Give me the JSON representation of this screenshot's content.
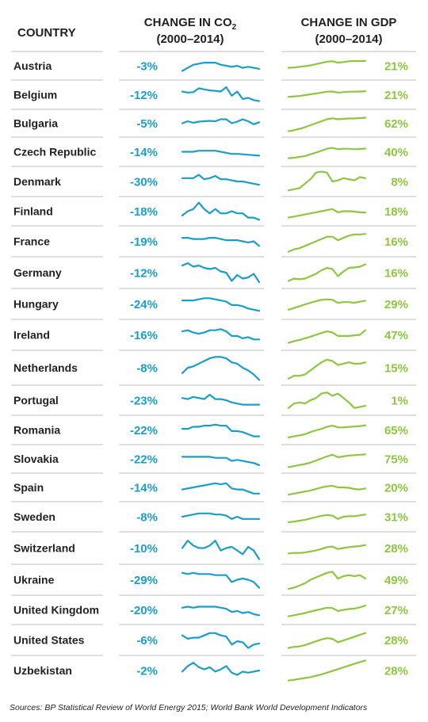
{
  "chart_data": {
    "type": "table",
    "headers": {
      "country": "COUNTRY",
      "co2_line1": "CHANGE IN CO",
      "co2_subscript": "2",
      "co2_line2": "(2000–2014)",
      "gdp_line1": "CHANGE IN GDP",
      "gdp_line2": "(2000–2014)"
    },
    "colors": {
      "co2": "#1a9dc9",
      "gdp": "#8dc63f",
      "text": "#231f20",
      "rule": "#bfbfbf"
    },
    "rows": [
      {
        "country": "Austria",
        "co2": "-3%",
        "gdp": "21%",
        "co2_trend": [
          0.75,
          0.6,
          0.45,
          0.4,
          0.35,
          0.35,
          0.35,
          0.45,
          0.5,
          0.55,
          0.5,
          0.6,
          0.55,
          0.6,
          0.65
        ],
        "gdp_trend": [
          0.6,
          0.58,
          0.55,
          0.52,
          0.48,
          0.42,
          0.36,
          0.3,
          0.28,
          0.35,
          0.32,
          0.28,
          0.27,
          0.27,
          0.26
        ]
      },
      {
        "country": "Belgium",
        "co2": "-12%",
        "gdp": "21%",
        "co2_trend": [
          0.35,
          0.4,
          0.38,
          0.2,
          0.25,
          0.3,
          0.32,
          0.35,
          0.15,
          0.55,
          0.35,
          0.7,
          0.65,
          0.75,
          0.8
        ],
        "gdp_trend": [
          0.6,
          0.58,
          0.56,
          0.52,
          0.48,
          0.44,
          0.4,
          0.36,
          0.35,
          0.4,
          0.38,
          0.36,
          0.36,
          0.35,
          0.34
        ]
      },
      {
        "country": "Bulgaria",
        "co2": "-5%",
        "gdp": "62%",
        "co2_trend": [
          0.5,
          0.4,
          0.48,
          0.42,
          0.4,
          0.38,
          0.4,
          0.3,
          0.3,
          0.5,
          0.42,
          0.3,
          0.4,
          0.55,
          0.45
        ],
        "gdp_trend": [
          0.9,
          0.85,
          0.78,
          0.7,
          0.6,
          0.5,
          0.4,
          0.3,
          0.25,
          0.3,
          0.28,
          0.26,
          0.26,
          0.24,
          0.22
        ]
      },
      {
        "country": "Czech Republic",
        "co2": "-14%",
        "gdp": "40%",
        "co2_trend": [
          0.5,
          0.5,
          0.5,
          0.45,
          0.45,
          0.45,
          0.45,
          0.5,
          0.55,
          0.6,
          0.6,
          0.62,
          0.64,
          0.66,
          0.68
        ],
        "gdp_trend": [
          0.8,
          0.78,
          0.74,
          0.7,
          0.62,
          0.54,
          0.45,
          0.36,
          0.32,
          0.38,
          0.36,
          0.36,
          0.38,
          0.37,
          0.35
        ]
      },
      {
        "country": "Denmark",
        "co2": "-30%",
        "gdp": "8%",
        "co2_trend": [
          0.35,
          0.35,
          0.35,
          0.2,
          0.4,
          0.35,
          0.25,
          0.4,
          0.4,
          0.45,
          0.5,
          0.5,
          0.55,
          0.6,
          0.65
        ],
        "gdp_trend": [
          0.9,
          0.85,
          0.8,
          0.6,
          0.4,
          0.1,
          0.05,
          0.1,
          0.5,
          0.45,
          0.35,
          0.4,
          0.45,
          0.3,
          0.35
        ]
      },
      {
        "country": "Finland",
        "co2": "-18%",
        "gdp": "18%",
        "co2_trend": [
          0.7,
          0.5,
          0.4,
          0.1,
          0.4,
          0.6,
          0.4,
          0.6,
          0.6,
          0.5,
          0.6,
          0.6,
          0.8,
          0.8,
          0.9
        ],
        "gdp_trend": [
          0.8,
          0.75,
          0.7,
          0.65,
          0.6,
          0.55,
          0.5,
          0.45,
          0.4,
          0.55,
          0.5,
          0.5,
          0.52,
          0.55,
          0.56
        ]
      },
      {
        "country": "France",
        "co2": "-19%",
        "gdp": "16%",
        "co2_trend": [
          0.35,
          0.35,
          0.4,
          0.4,
          0.4,
          0.35,
          0.35,
          0.4,
          0.45,
          0.45,
          0.45,
          0.5,
          0.55,
          0.5,
          0.7
        ],
        "gdp_trend": [
          0.95,
          0.85,
          0.8,
          0.7,
          0.6,
          0.5,
          0.4,
          0.3,
          0.3,
          0.45,
          0.35,
          0.25,
          0.2,
          0.2,
          0.18
        ]
      },
      {
        "country": "Germany",
        "co2": "-12%",
        "gdp": "16%",
        "co2_trend": [
          0.2,
          0.1,
          0.25,
          0.2,
          0.3,
          0.35,
          0.3,
          0.45,
          0.5,
          0.85,
          0.6,
          0.75,
          0.7,
          0.55,
          0.9
        ],
        "gdp_trend": [
          0.85,
          0.75,
          0.78,
          0.75,
          0.65,
          0.55,
          0.4,
          0.3,
          0.35,
          0.65,
          0.45,
          0.3,
          0.28,
          0.25,
          0.15
        ]
      },
      {
        "country": "Hungary",
        "co2": "-24%",
        "gdp": "29%",
        "co2_trend": [
          0.35,
          0.35,
          0.35,
          0.3,
          0.25,
          0.25,
          0.3,
          0.35,
          0.4,
          0.55,
          0.55,
          0.6,
          0.7,
          0.75,
          0.8
        ],
        "gdp_trend": [
          0.75,
          0.68,
          0.6,
          0.52,
          0.45,
          0.38,
          0.32,
          0.3,
          0.32,
          0.45,
          0.42,
          0.42,
          0.45,
          0.4,
          0.36
        ]
      },
      {
        "country": "Ireland",
        "co2": "-16%",
        "gdp": "47%",
        "co2_trend": [
          0.35,
          0.3,
          0.4,
          0.45,
          0.4,
          0.3,
          0.3,
          0.25,
          0.35,
          0.55,
          0.55,
          0.65,
          0.6,
          0.7,
          0.7
        ],
        "gdp_trend": [
          0.85,
          0.78,
          0.72,
          0.65,
          0.58,
          0.5,
          0.42,
          0.35,
          0.4,
          0.55,
          0.55,
          0.55,
          0.52,
          0.5,
          0.3
        ]
      },
      {
        "country": "Netherlands",
        "co2": "-8%",
        "gdp": "15%",
        "co2_trend": [
          0.7,
          0.5,
          0.45,
          0.35,
          0.25,
          0.15,
          0.1,
          0.1,
          0.15,
          0.3,
          0.35,
          0.5,
          0.6,
          0.75,
          0.95
        ],
        "gdp_trend": [
          0.9,
          0.8,
          0.8,
          0.75,
          0.6,
          0.45,
          0.3,
          0.2,
          0.25,
          0.4,
          0.35,
          0.3,
          0.35,
          0.35,
          0.3
        ]
      },
      {
        "country": "Portugal",
        "co2": "-23%",
        "gdp": "1%",
        "co2_trend": [
          0.4,
          0.45,
          0.35,
          0.4,
          0.45,
          0.25,
          0.45,
          0.45,
          0.5,
          0.6,
          0.65,
          0.7,
          0.7,
          0.7,
          0.7
        ],
        "gdp_trend": [
          0.85,
          0.65,
          0.6,
          0.65,
          0.5,
          0.4,
          0.2,
          0.15,
          0.3,
          0.2,
          0.4,
          0.6,
          0.85,
          0.8,
          0.75
        ]
      },
      {
        "country": "Romania",
        "co2": "-22%",
        "gdp": "65%",
        "co2_trend": [
          0.45,
          0.45,
          0.35,
          0.35,
          0.3,
          0.3,
          0.25,
          0.3,
          0.3,
          0.55,
          0.55,
          0.6,
          0.7,
          0.8,
          0.8
        ],
        "gdp_trend": [
          0.85,
          0.8,
          0.75,
          0.7,
          0.6,
          0.52,
          0.45,
          0.35,
          0.3,
          0.38,
          0.38,
          0.36,
          0.34,
          0.32,
          0.28
        ]
      },
      {
        "country": "Slovakia",
        "co2": "-22%",
        "gdp": "75%",
        "co2_trend": [
          0.4,
          0.4,
          0.4,
          0.4,
          0.4,
          0.4,
          0.45,
          0.45,
          0.45,
          0.6,
          0.55,
          0.6,
          0.65,
          0.7,
          0.8
        ],
        "gdp_trend": [
          0.9,
          0.85,
          0.8,
          0.75,
          0.68,
          0.58,
          0.48,
          0.38,
          0.3,
          0.42,
          0.38,
          0.34,
          0.32,
          0.3,
          0.28
        ]
      },
      {
        "country": "Spain",
        "co2": "-14%",
        "gdp": "20%",
        "co2_trend": [
          0.6,
          0.55,
          0.5,
          0.45,
          0.4,
          0.35,
          0.3,
          0.35,
          0.3,
          0.55,
          0.6,
          0.6,
          0.7,
          0.8,
          0.8
        ],
        "gdp_trend": [
          0.85,
          0.8,
          0.75,
          0.7,
          0.65,
          0.58,
          0.5,
          0.45,
          0.42,
          0.5,
          0.5,
          0.52,
          0.58,
          0.6,
          0.55
        ]
      },
      {
        "country": "Sweden",
        "co2": "-8%",
        "gdp": "31%",
        "co2_trend": [
          0.5,
          0.45,
          0.4,
          0.35,
          0.35,
          0.35,
          0.4,
          0.4,
          0.45,
          0.6,
          0.5,
          0.6,
          0.6,
          0.6,
          0.6
        ],
        "gdp_trend": [
          0.75,
          0.72,
          0.68,
          0.64,
          0.58,
          0.52,
          0.46,
          0.42,
          0.45,
          0.6,
          0.5,
          0.48,
          0.48,
          0.44,
          0.4
        ]
      },
      {
        "country": "Switzerland",
        "co2": "-10%",
        "gdp": "28%",
        "co2_trend": [
          0.5,
          0.2,
          0.4,
          0.5,
          0.5,
          0.4,
          0.2,
          0.6,
          0.5,
          0.45,
          0.6,
          0.75,
          0.45,
          0.6,
          0.95
        ],
        "gdp_trend": [
          0.72,
          0.7,
          0.7,
          0.68,
          0.64,
          0.6,
          0.54,
          0.46,
          0.44,
          0.54,
          0.5,
          0.46,
          0.44,
          0.42,
          0.38
        ]
      },
      {
        "country": "Ukraine",
        "co2": "-29%",
        "gdp": "49%",
        "co2_trend": [
          0.2,
          0.25,
          0.2,
          0.25,
          0.25,
          0.25,
          0.3,
          0.3,
          0.3,
          0.6,
          0.5,
          0.45,
          0.5,
          0.6,
          0.85
        ],
        "gdp_trend": [
          0.9,
          0.85,
          0.75,
          0.65,
          0.5,
          0.4,
          0.3,
          0.2,
          0.15,
          0.45,
          0.35,
          0.3,
          0.35,
          0.3,
          0.45
        ]
      },
      {
        "country": "United Kingdom",
        "co2": "-20%",
        "gdp": "27%",
        "co2_trend": [
          0.4,
          0.35,
          0.4,
          0.35,
          0.35,
          0.35,
          0.35,
          0.4,
          0.45,
          0.6,
          0.55,
          0.65,
          0.6,
          0.7,
          0.75
        ],
        "gdp_trend": [
          0.8,
          0.75,
          0.7,
          0.65,
          0.58,
          0.52,
          0.46,
          0.4,
          0.42,
          0.55,
          0.5,
          0.46,
          0.44,
          0.38,
          0.3
        ]
      },
      {
        "country": "United States",
        "co2": "-6%",
        "gdp": "28%",
        "co2_trend": [
          0.3,
          0.45,
          0.4,
          0.4,
          0.3,
          0.2,
          0.2,
          0.3,
          0.35,
          0.7,
          0.55,
          0.6,
          0.85,
          0.7,
          0.65
        ],
        "gdp_trend": [
          0.85,
          0.8,
          0.78,
          0.72,
          0.64,
          0.56,
          0.48,
          0.42,
          0.45,
          0.6,
          0.52,
          0.44,
          0.36,
          0.28,
          0.2
        ]
      },
      {
        "country": "Uzbekistan",
        "co2": "-2%",
        "gdp": "28%",
        "co2_trend": [
          0.55,
          0.3,
          0.15,
          0.35,
          0.45,
          0.35,
          0.55,
          0.45,
          0.3,
          0.6,
          0.7,
          0.55,
          0.6,
          0.55,
          0.5
        ],
        "gdp_trend": [
          0.95,
          0.92,
          0.88,
          0.84,
          0.8,
          0.74,
          0.68,
          0.6,
          0.52,
          0.44,
          0.36,
          0.28,
          0.2,
          0.12,
          0.05
        ]
      }
    ],
    "source": "Sources: BP Statistical Review of World Energy 2015; World Bank World Development Indicators"
  }
}
